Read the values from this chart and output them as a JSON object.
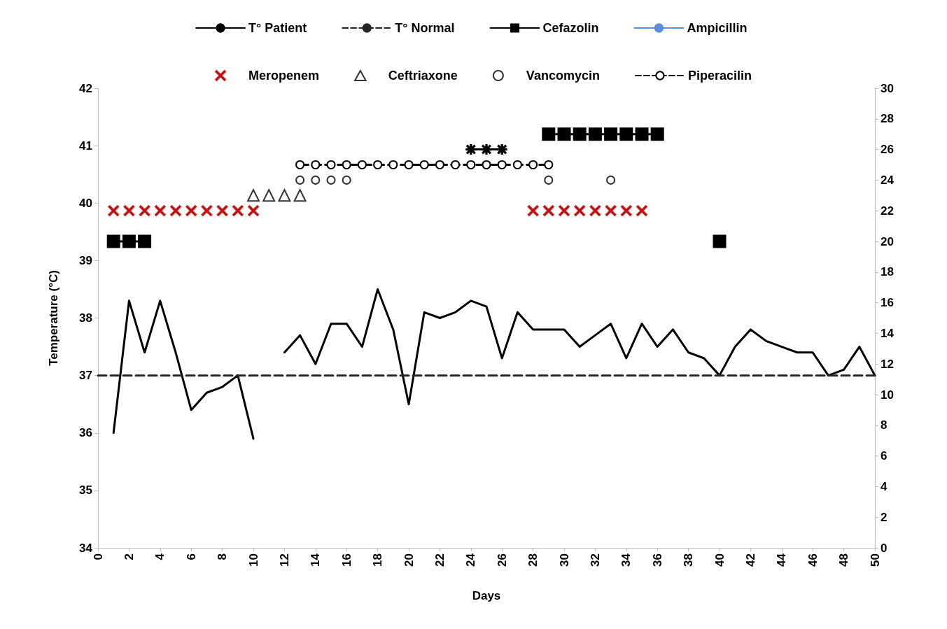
{
  "chart_data": {
    "type": "line",
    "xlabel": "Days",
    "ylabel": "Temperature (°C)",
    "xlim": [
      0,
      50
    ],
    "xticks": [
      0,
      2,
      4,
      6,
      8,
      10,
      12,
      14,
      16,
      18,
      20,
      22,
      24,
      26,
      28,
      30,
      32,
      34,
      36,
      38,
      40,
      42,
      44,
      46,
      48,
      50
    ],
    "ylim": [
      34,
      42
    ],
    "yticks": [
      34,
      35,
      36,
      37,
      38,
      39,
      40,
      41,
      42
    ],
    "y2lim": [
      0,
      30
    ],
    "y2ticks": [
      0,
      2,
      4,
      6,
      8,
      10,
      12,
      14,
      16,
      18,
      20,
      22,
      24,
      26,
      28,
      30
    ],
    "legend": "top",
    "series": [
      {
        "name": "T° Patient",
        "color": "#000000",
        "marker": "none",
        "line_style": "solid",
        "x": [
          1,
          2,
          3,
          4,
          5,
          6,
          7,
          8,
          9,
          10,
          11,
          12,
          13,
          14,
          15,
          16,
          17,
          18,
          19,
          20,
          21,
          22,
          23,
          24,
          25,
          26,
          27,
          28,
          29,
          30,
          31,
          32,
          33,
          34,
          35,
          36,
          37,
          38,
          39,
          40,
          41,
          42,
          43,
          44,
          45,
          46,
          47,
          48,
          49,
          50
        ],
        "values": [
          36.0,
          38.3,
          37.4,
          38.3,
          37.4,
          36.4,
          36.7,
          36.8,
          37.0,
          35.9,
          null,
          37.4,
          37.7,
          37.2,
          37.9,
          37.9,
          37.5,
          38.5,
          37.8,
          36.5,
          38.1,
          38.0,
          38.1,
          38.3,
          38.2,
          37.3,
          38.1,
          37.8,
          37.8,
          37.8,
          37.5,
          37.7,
          37.9,
          37.3,
          37.9,
          37.5,
          37.8,
          37.4,
          37.3,
          37.0,
          37.5,
          37.8,
          37.6,
          37.5,
          37.4,
          37.4,
          37.0,
          37.1,
          37.5,
          37.0
        ]
      },
      {
        "name": "T° Normal",
        "color": "#262626",
        "marker": "none",
        "line_style": "dashed",
        "x": [
          0,
          50
        ],
        "values": [
          37,
          37
        ]
      },
      {
        "name": "Cefazolin",
        "type": "line",
        "axis": "y2",
        "color": "#000000",
        "marker": "square",
        "line_style": "solid",
        "x": [
          1,
          2,
          3,
          4,
          40
        ],
        "values": [
          20,
          20,
          20,
          null,
          20
        ]
      },
      {
        "name": "Ampicillin",
        "type": "line",
        "axis": "y2",
        "color": "#5b8fd9",
        "marker": "none",
        "line_style": "solid"
      },
      {
        "name": "Meropenem",
        "type": "scatter",
        "axis": "y2",
        "color": "#c00000",
        "marker": "cross",
        "x": [
          1,
          2,
          3,
          4,
          5,
          6,
          7,
          8,
          9,
          10,
          28,
          29,
          30,
          31,
          32,
          33,
          34,
          35
        ],
        "values": [
          22,
          22,
          22,
          22,
          22,
          22,
          22,
          22,
          22,
          22,
          22,
          22,
          22,
          22,
          22,
          22,
          22,
          22
        ]
      },
      {
        "name": "Ceftriaxone",
        "type": "scatter",
        "axis": "y2",
        "color": "#000000",
        "marker": "triangle",
        "x": [
          10,
          11,
          12,
          13
        ],
        "values": [
          23,
          23,
          23,
          23
        ]
      },
      {
        "name": "Vancomycin",
        "type": "scatter",
        "axis": "y2",
        "color": "#000000",
        "marker": "circle",
        "x": [
          13,
          14,
          15,
          16,
          29,
          33
        ],
        "values": [
          24,
          24,
          24,
          24,
          24,
          24
        ]
      },
      {
        "name": "Piperacilin",
        "type": "line",
        "axis": "y2",
        "color": "#000000",
        "marker": "circle",
        "line_style": "dashed",
        "x": [
          13,
          14,
          15,
          16,
          17,
          18,
          19,
          20,
          21,
          22,
          23,
          24,
          25,
          26,
          27,
          28,
          29
        ],
        "values": [
          25,
          25,
          25,
          25,
          25,
          25,
          25,
          25,
          25,
          25,
          25,
          25,
          25,
          25,
          25,
          25,
          25
        ]
      },
      {
        "type": "line",
        "axis": "y2",
        "color": "#000000",
        "marker": "star",
        "line_style": "solid",
        "x": [
          24,
          25,
          26
        ],
        "values": [
          26,
          26,
          26
        ]
      },
      {
        "type": "line",
        "axis": "y2",
        "color": "#000000",
        "marker": "square",
        "line_style": "solid",
        "x": [
          29,
          30,
          31,
          32,
          33,
          34,
          35,
          36
        ],
        "values": [
          27,
          27,
          27,
          27,
          27,
          27,
          27,
          27
        ]
      }
    ]
  }
}
